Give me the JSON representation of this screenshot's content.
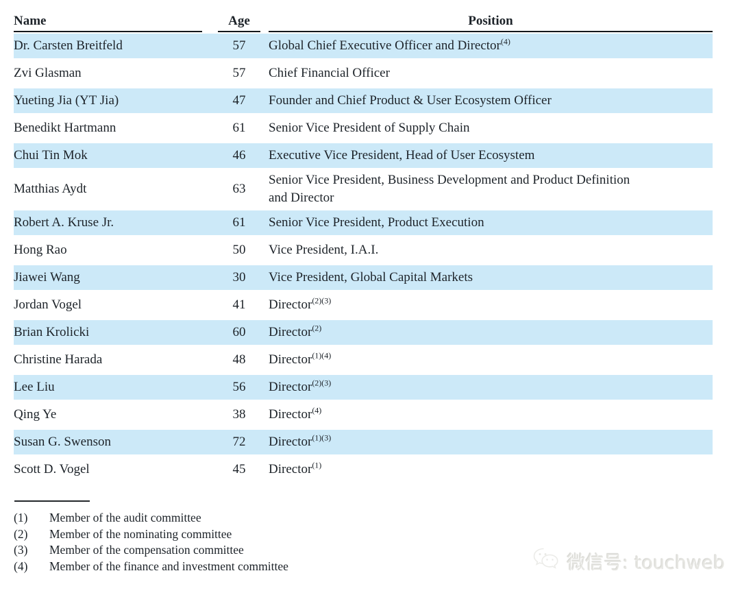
{
  "table": {
    "columns": {
      "name": "Name",
      "age": "Age",
      "position": "Position"
    },
    "rows": [
      {
        "name": "Dr. Carsten Breitfeld",
        "age": "57",
        "position": "Global Chief Executive Officer and Director",
        "sup": "(4)",
        "highlight": true
      },
      {
        "name": "Zvi Glasman",
        "age": "57",
        "position": "Chief Financial Officer",
        "sup": "",
        "highlight": false
      },
      {
        "name": "Yueting Jia (YT Jia)",
        "age": "47",
        "position": "Founder and Chief Product & User Ecosystem Officer",
        "sup": "",
        "highlight": true
      },
      {
        "name": "Benedikt Hartmann",
        "age": "61",
        "position": "Senior Vice President of Supply Chain",
        "sup": "",
        "highlight": false
      },
      {
        "name": "Chui Tin Mok",
        "age": "46",
        "position": "Executive Vice President, Head of User Ecosystem",
        "sup": "",
        "highlight": true
      },
      {
        "name": "Matthias Aydt",
        "age": "63",
        "position": "Senior Vice President, Business Development and Product Definition\nand Director",
        "sup": "",
        "highlight": false,
        "tall": true
      },
      {
        "name": "Robert A. Kruse Jr.",
        "age": "61",
        "position": "Senior Vice President, Product Execution",
        "sup": "",
        "highlight": true
      },
      {
        "name": "Hong Rao",
        "age": "50",
        "position": "Vice President, I.A.I.",
        "sup": "",
        "highlight": false
      },
      {
        "name": "Jiawei Wang",
        "age": "30",
        "position": "Vice President, Global Capital Markets",
        "sup": "",
        "highlight": true
      },
      {
        "name": "Jordan Vogel",
        "age": "41",
        "position": "Director",
        "sup": "(2)(3)",
        "highlight": false
      },
      {
        "name": "Brian Krolicki",
        "age": "60",
        "position": "Director",
        "sup": "(2)",
        "highlight": true
      },
      {
        "name": "Christine Harada",
        "age": "48",
        "position": "Director",
        "sup": "(1)(4)",
        "highlight": false
      },
      {
        "name": "Lee Liu",
        "age": "56",
        "position": "Director",
        "sup": "(2)(3)",
        "highlight": true
      },
      {
        "name": "Qing Ye",
        "age": "38",
        "position": "Director",
        "sup": "(4)",
        "highlight": false
      },
      {
        "name": "Susan G. Swenson",
        "age": "72",
        "position": "Director",
        "sup": "(1)(3)",
        "highlight": true
      },
      {
        "name": "Scott D. Vogel",
        "age": "45",
        "position": "Director",
        "sup": "(1)",
        "highlight": false
      }
    ]
  },
  "footnotes": [
    {
      "marker": "(1)",
      "text": "Member of the audit committee"
    },
    {
      "marker": "(2)",
      "text": "Member of the nominating committee"
    },
    {
      "marker": "(3)",
      "text": "Member of the compensation committee"
    },
    {
      "marker": "(4)",
      "text": "Member of the finance and investment committee"
    }
  ],
  "watermark": {
    "text": "微信号: touchweb",
    "icon": "wechat-icon"
  },
  "colors": {
    "row_highlight": "#cce9f8",
    "text": "#1d2329",
    "header_rule": "#14181c",
    "watermark_text": "#e6e6e2"
  }
}
